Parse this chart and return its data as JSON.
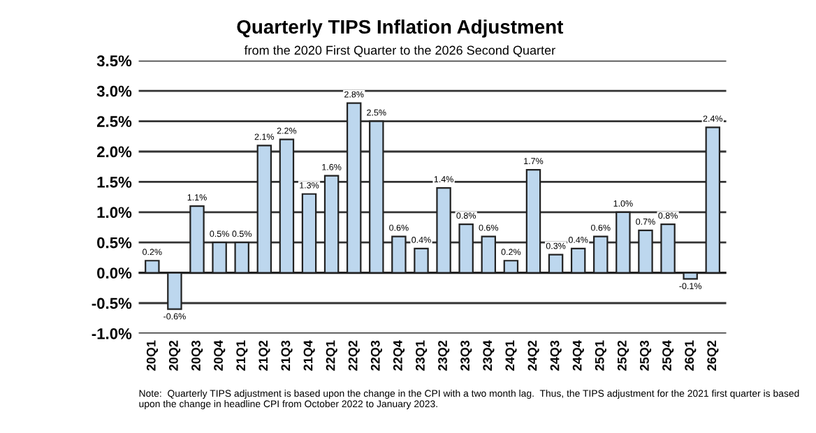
{
  "chart_data": {
    "type": "bar",
    "title": "Quarterly TIPS Inflation Adjustment",
    "subtitle": "from the 2020 First Quarter to the 2026 Second Quarter",
    "categories": [
      "20Q1",
      "20Q2",
      "20Q3",
      "20Q4",
      "21Q1",
      "21Q2",
      "21Q3",
      "21Q4",
      "22Q1",
      "22Q2",
      "22Q3",
      "22Q4",
      "23Q1",
      "23Q2",
      "23Q3",
      "23Q4",
      "24Q1",
      "24Q2",
      "24Q3",
      "24Q4",
      "25Q1",
      "25Q2",
      "25Q3",
      "25Q4",
      "26Q1",
      "26Q2"
    ],
    "values": [
      0.2,
      -0.6,
      1.1,
      0.5,
      0.5,
      2.1,
      2.2,
      1.3,
      1.6,
      2.8,
      2.5,
      0.6,
      0.4,
      1.4,
      0.8,
      0.6,
      0.2,
      1.7,
      0.3,
      0.4,
      0.6,
      1.0,
      0.7,
      0.8,
      -0.1,
      2.4
    ],
    "value_labels": [
      "0.2%",
      "-0.6%",
      "1.1%",
      "0.5%",
      "0.5%",
      "2.1%",
      "2.2%",
      "1.3%",
      "1.6%",
      "2.8%",
      "2.5%",
      "0.6%",
      "0.4%",
      "1.4%",
      "0.8%",
      "0.6%",
      "0.2%",
      "1.7%",
      "0.3%",
      "0.4%",
      "0.6%",
      "1.0%",
      "0.7%",
      "0.8%",
      "-0.1%",
      "2.4%"
    ],
    "color": "#bdd7ee",
    "ylim": [
      -1.0,
      3.5
    ],
    "yticks": [
      {
        "value": -1.0,
        "label": "-1.0%"
      },
      {
        "value": -0.5,
        "label": "-0.5%"
      },
      {
        "value": 0.0,
        "label": "0.0%"
      },
      {
        "value": 0.5,
        "label": "0.5%"
      },
      {
        "value": 1.0,
        "label": "1.0%"
      },
      {
        "value": 1.5,
        "label": "1.5%"
      },
      {
        "value": 2.0,
        "label": "2.0%"
      },
      {
        "value": 2.5,
        "label": "2.5%"
      },
      {
        "value": 3.0,
        "label": "3.0%"
      },
      {
        "value": 3.5,
        "label": "3.5%"
      }
    ],
    "grid": "y",
    "annotations": [
      "Note:  Quarterly TIPS adjustment is based upon the change in the CPI with a two month lag.  Thus, the TIPS adjustment for the 2021 first quarter is based upon the change in headline CPI from October 2022 to January 2023."
    ]
  }
}
